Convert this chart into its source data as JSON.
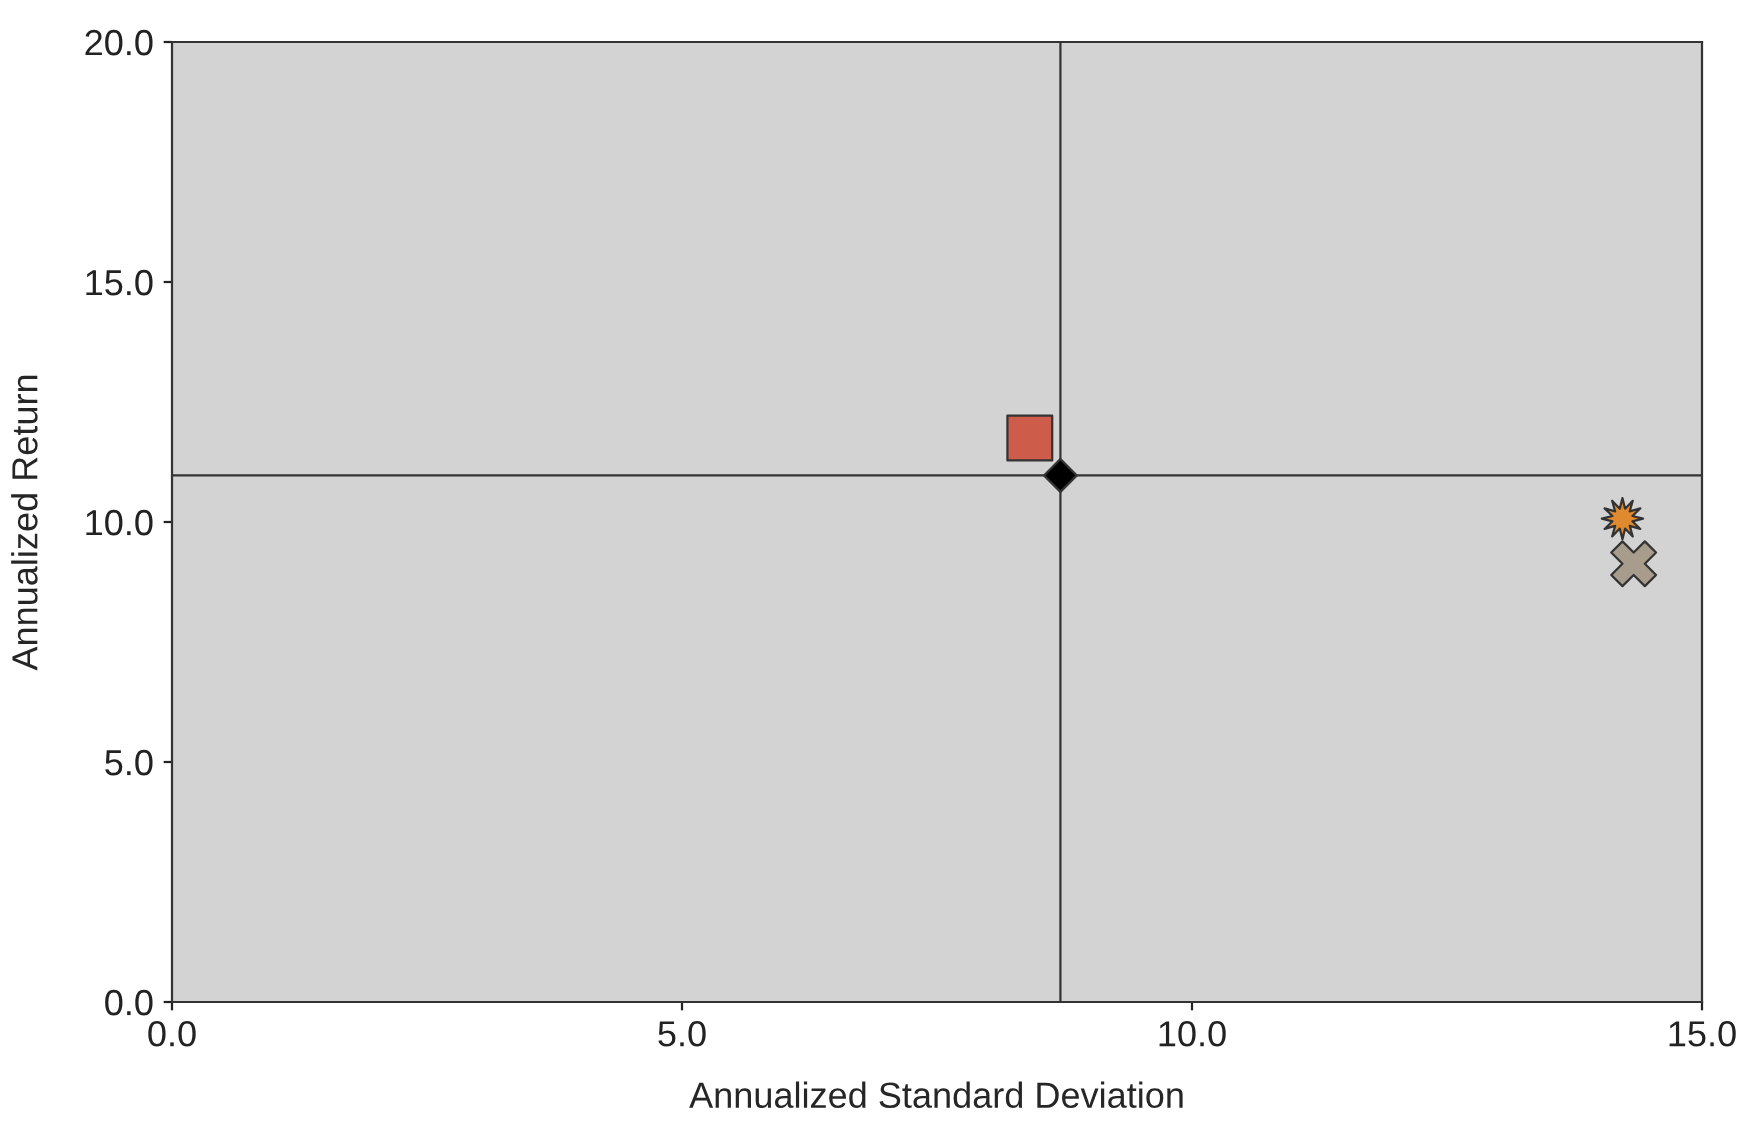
{
  "chart_data": {
    "type": "scatter",
    "xlabel": "Annualized Standard Deviation",
    "ylabel": "Annualized Return",
    "series": [
      {
        "x": [
          8.41
        ],
        "values": [
          11.75
        ],
        "color": "#cd5c4a",
        "marker": "square"
      },
      {
        "x": [
          8.71
        ],
        "values": [
          10.97
        ],
        "color": "#000000",
        "marker": "diamond"
      },
      {
        "x": [
          14.22
        ],
        "values": [
          10.07
        ],
        "color": "#e08a30",
        "marker": "star"
      },
      {
        "x": [
          14.33
        ],
        "values": [
          9.13
        ],
        "color": "#a89c8c",
        "marker": "cross"
      }
    ],
    "ref_lines": [
      {
        "axis": "x",
        "value": 8.71,
        "color": "#333333"
      },
      {
        "axis": "y",
        "value": 10.97,
        "color": "#333333"
      }
    ],
    "xlim": [
      0,
      15
    ],
    "ylim": [
      0,
      20
    ],
    "xticks": [
      {
        "value": 0,
        "label": "0.0"
      },
      {
        "value": 5,
        "label": "5.0"
      },
      {
        "value": 10,
        "label": "10.0"
      },
      {
        "value": 15,
        "label": "15.0"
      }
    ],
    "yticks": [
      {
        "value": 0,
        "label": "0.0"
      },
      {
        "value": 5,
        "label": "5.0"
      },
      {
        "value": 10,
        "label": "10.0"
      },
      {
        "value": 15,
        "label": "15.0"
      },
      {
        "value": 20,
        "label": "20.0"
      }
    ],
    "grid": false,
    "legend": false
  }
}
